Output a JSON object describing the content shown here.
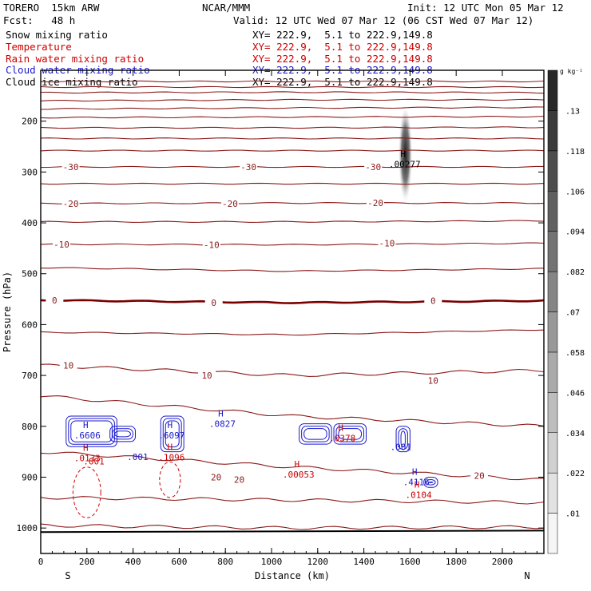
{
  "header": {
    "model": "TORERO  15km ARW",
    "center": "NCAR/MMM",
    "init": "Init: 12 UTC Mon 05 Mar 12",
    "fcst": "Fcst:   48 h",
    "valid": "Valid: 12 UTC Wed 07 Mar 12 (06 CST Wed 07 Mar 12)"
  },
  "fields": [
    {
      "label": "Snow mixing ratio",
      "xy": "XY= 222.9,  5.1 to 222.9,149.8",
      "color": "#000000"
    },
    {
      "label": "Temperature",
      "xy": "XY= 222.9,  5.1 to 222.9,149.8",
      "color": "#cc0000"
    },
    {
      "label": "Rain water mixing ratio",
      "xy": "XY= 222.9,  5.1 to 222.9,149.8",
      "color": "#cc0000"
    },
    {
      "label": "Cloud water mixing ratio",
      "xy": "XY= 222.9,  5.1 to 222.9,149.8",
      "color": "#1a1acc"
    },
    {
      "label": "Cloud ice mixing ratio",
      "xy": "XY= 222.9,  5.1 to 222.9,149.8",
      "color": "#000000"
    }
  ],
  "chart_data": {
    "type": "contour-cross-section",
    "xlabel": "Distance (km)",
    "ylabel": "Pressure (hPa)",
    "xlim": [
      0,
      2180
    ],
    "ylim": [
      1050,
      100
    ],
    "x_ticks": [
      0,
      200,
      400,
      600,
      800,
      1000,
      1200,
      1400,
      1600,
      1800,
      2000
    ],
    "y_ticks": [
      200,
      300,
      400,
      500,
      600,
      700,
      800,
      900,
      1000
    ],
    "end_labels": {
      "left": "S",
      "right": "N"
    },
    "colorbar": {
      "unit": "g kg⁻¹",
      "levels": [
        0.01,
        0.022,
        0.034,
        0.046,
        0.058,
        0.07,
        0.082,
        0.094,
        0.106,
        0.118,
        0.13
      ]
    },
    "temperature_contours": {
      "color": "#8b1a1a",
      "zero_color": "#7a0000",
      "lines": [
        {
          "t": -75,
          "p": [
            122,
            122,
            122
          ]
        },
        {
          "t": -70,
          "p": [
            133,
            133,
            133
          ]
        },
        {
          "t": -65,
          "p": [
            144,
            143,
            144
          ]
        },
        {
          "t": -60,
          "p": [
            160,
            158,
            158
          ]
        },
        {
          "t": -55,
          "p": [
            176,
            174,
            173
          ]
        },
        {
          "t": -50,
          "p": [
            193,
            192,
            191
          ]
        },
        {
          "t": -45,
          "p": [
            213,
            213,
            212
          ]
        },
        {
          "t": -40,
          "p": [
            234,
            234,
            234
          ]
        },
        {
          "t": -35,
          "p": [
            258,
            258,
            258
          ]
        },
        {
          "t": -30,
          "p": [
            290,
            290,
            290
          ]
        },
        {
          "t": -25,
          "p": [
            323,
            323,
            323
          ]
        },
        {
          "t": -20,
          "p": [
            362,
            361,
            361
          ]
        },
        {
          "t": -15,
          "p": [
            398,
            398,
            396
          ]
        },
        {
          "t": -10,
          "p": [
            442,
            443,
            440
          ]
        },
        {
          "t": -5,
          "p": [
            488,
            495,
            490
          ]
        },
        {
          "t": 0,
          "p": [
            552,
            557,
            553
          ]
        },
        {
          "t": 5,
          "p": [
            615,
            620,
            610
          ]
        },
        {
          "t": 10,
          "p": [
            680,
            700,
            690
          ]
        },
        {
          "t": 15,
          "p": [
            740,
            780,
            800
          ]
        },
        {
          "t": 20,
          "p": [
            850,
            880,
            905
          ]
        },
        {
          "t": 25,
          "p": [
            940,
            945,
            950
          ]
        },
        {
          "t": 30,
          "p": [
            995,
            1000,
            998
          ]
        }
      ],
      "labels": [
        {
          "text": "-30",
          "x": 130,
          "p": 290
        },
        {
          "text": "-30",
          "x": 900,
          "p": 290
        },
        {
          "text": "-30",
          "x": 1440,
          "p": 290
        },
        {
          "text": "-20",
          "x": 130,
          "p": 362
        },
        {
          "text": "-20",
          "x": 820,
          "p": 362
        },
        {
          "text": "-20",
          "x": 1450,
          "p": 361
        },
        {
          "text": "-10",
          "x": 90,
          "p": 442
        },
        {
          "text": "-10",
          "x": 740,
          "p": 443
        },
        {
          "text": "-10",
          "x": 1500,
          "p": 440
        },
        {
          "text": "0",
          "x": 60,
          "p": 552
        },
        {
          "text": "0",
          "x": 750,
          "p": 557
        },
        {
          "text": "0",
          "x": 1700,
          "p": 553
        },
        {
          "text": "10",
          "x": 120,
          "p": 680
        },
        {
          "text": "10",
          "x": 720,
          "p": 700
        },
        {
          "text": "10",
          "x": 1700,
          "p": 710
        },
        {
          "text": "20",
          "x": 760,
          "p": 900
        },
        {
          "text": "20",
          "x": 860,
          "p": 905
        },
        {
          "text": "20",
          "x": 1900,
          "p": 897
        }
      ]
    },
    "extrema": [
      {
        "type": "H",
        "value": ".00277",
        "x": 1570,
        "p": 280,
        "color": "#000000"
      },
      {
        "type": "H",
        "value": ".6606",
        "x": 195,
        "p": 813,
        "color": "#1a1acc"
      },
      {
        "type": "H",
        "value": ".0133",
        "x": 195,
        "p": 858,
        "color": "#cc0000"
      },
      {
        "type": "H",
        "value": ".6097",
        "x": 560,
        "p": 813,
        "color": "#1a1acc"
      },
      {
        "type": "H",
        "value": ".1096",
        "x": 560,
        "p": 856,
        "color": "#cc0000"
      },
      {
        "type": "H",
        "value": ".0827",
        "x": 780,
        "p": 790,
        "color": "#1a1acc"
      },
      {
        "type": "H",
        "value": ".00053",
        "x": 1110,
        "p": 890,
        "color": "#cc0000"
      },
      {
        "type": "H",
        "value": ".0378",
        "x": 1300,
        "p": 818,
        "color": "#cc0000"
      },
      {
        "type": "H",
        "value": ".4116",
        "x": 1620,
        "p": 905,
        "color": "#1a1acc"
      },
      {
        "type": "H",
        "value": ".0104",
        "x": 1630,
        "p": 930,
        "color": "#cc0000"
      }
    ],
    "minor_labels": [
      {
        "text": ".001",
        "x": 230,
        "p": 875,
        "color": "#cc0000"
      },
      {
        "text": ".001",
        "x": 420,
        "p": 866,
        "color": "#1a1acc"
      },
      {
        "text": ".001",
        "x": 1560,
        "p": 847,
        "color": "#1a1acc"
      }
    ]
  }
}
